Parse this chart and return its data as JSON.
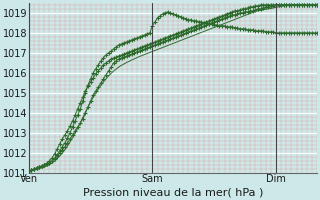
{
  "xlabel": "Pression niveau de la mer( hPa )",
  "background_color": "#cce8e8",
  "plot_bg_color": "#cce8e8",
  "line_color": "#2d6b2d",
  "ylim": [
    1011,
    1019.5
  ],
  "yticks": [
    1011,
    1012,
    1013,
    1014,
    1015,
    1016,
    1017,
    1018,
    1019
  ],
  "xtick_labels": [
    "Ven",
    "Sam",
    "Dim"
  ],
  "xtick_positions": [
    0,
    48,
    96
  ],
  "total_points": 113,
  "series": [
    {
      "has_markers": true,
      "data": [
        1011.1,
        1011.15,
        1011.2,
        1011.25,
        1011.3,
        1011.35,
        1011.4,
        1011.45,
        1011.5,
        1011.6,
        1011.7,
        1011.85,
        1012.0,
        1012.15,
        1012.3,
        1012.5,
        1012.7,
        1012.9,
        1013.1,
        1013.3,
        1013.5,
        1013.7,
        1014.0,
        1014.3,
        1014.6,
        1014.9,
        1015.1,
        1015.3,
        1015.5,
        1015.7,
        1015.9,
        1016.1,
        1016.3,
        1016.5,
        1016.6,
        1016.7,
        1016.75,
        1016.8,
        1016.85,
        1016.9,
        1016.95,
        1017.0,
        1017.05,
        1017.1,
        1017.15,
        1017.2,
        1017.25,
        1017.3,
        1017.35,
        1017.4,
        1017.45,
        1017.5,
        1017.55,
        1017.6,
        1017.65,
        1017.7,
        1017.75,
        1017.8,
        1017.85,
        1017.9,
        1017.95,
        1018.0,
        1018.05,
        1018.1,
        1018.15,
        1018.2,
        1018.25,
        1018.3,
        1018.35,
        1018.4,
        1018.45,
        1018.5,
        1018.55,
        1018.6,
        1018.65,
        1018.7,
        1018.75,
        1018.8,
        1018.85,
        1018.9,
        1018.9,
        1018.95,
        1019.0,
        1019.0,
        1019.05,
        1019.05,
        1019.1,
        1019.1,
        1019.15,
        1019.2,
        1019.2,
        1019.25,
        1019.3,
        1019.3,
        1019.35,
        1019.35,
        1019.4,
        1019.4,
        1019.4,
        1019.4,
        1019.4,
        1019.4,
        1019.4,
        1019.4,
        1019.4,
        1019.4,
        1019.4,
        1019.4,
        1019.4,
        1019.4,
        1019.4,
        1019.4,
        1019.4
      ]
    },
    {
      "has_markers": true,
      "data": [
        1011.1,
        1011.15,
        1011.2,
        1011.25,
        1011.3,
        1011.35,
        1011.4,
        1011.45,
        1011.5,
        1011.6,
        1011.75,
        1011.9,
        1012.1,
        1012.3,
        1012.5,
        1012.75,
        1013.0,
        1013.3,
        1013.6,
        1013.9,
        1014.2,
        1014.6,
        1015.0,
        1015.4,
        1015.7,
        1016.0,
        1016.2,
        1016.4,
        1016.6,
        1016.75,
        1016.9,
        1017.0,
        1017.1,
        1017.2,
        1017.3,
        1017.4,
        1017.45,
        1017.5,
        1017.55,
        1017.6,
        1017.65,
        1017.7,
        1017.75,
        1017.8,
        1017.85,
        1017.9,
        1017.95,
        1018.0,
        1018.35,
        1018.55,
        1018.75,
        1018.85,
        1018.95,
        1019.0,
        1019.05,
        1019.0,
        1018.95,
        1018.9,
        1018.85,
        1018.8,
        1018.75,
        1018.7,
        1018.65,
        1018.65,
        1018.6,
        1018.6,
        1018.55,
        1018.55,
        1018.5,
        1018.5,
        1018.45,
        1018.45,
        1018.4,
        1018.4,
        1018.35,
        1018.35,
        1018.35,
        1018.3,
        1018.3,
        1018.3,
        1018.25,
        1018.25,
        1018.2,
        1018.2,
        1018.2,
        1018.15,
        1018.15,
        1018.15,
        1018.1,
        1018.1,
        1018.1,
        1018.1,
        1018.05,
        1018.05,
        1018.05,
        1018.05,
        1018.0,
        1018.0,
        1018.0,
        1018.0,
        1018.0,
        1018.0,
        1018.0,
        1018.0,
        1018.0,
        1018.0,
        1018.0,
        1018.0,
        1018.0,
        1018.0,
        1018.0,
        1018.0,
        1018.0
      ]
    },
    {
      "has_markers": true,
      "data": [
        1011.1,
        1011.15,
        1011.2,
        1011.25,
        1011.3,
        1011.35,
        1011.4,
        1011.5,
        1011.6,
        1011.75,
        1011.95,
        1012.2,
        1012.45,
        1012.7,
        1012.9,
        1013.1,
        1013.35,
        1013.6,
        1013.9,
        1014.2,
        1014.5,
        1014.8,
        1015.1,
        1015.35,
        1015.55,
        1015.75,
        1015.95,
        1016.1,
        1016.25,
        1016.4,
        1016.5,
        1016.6,
        1016.7,
        1016.75,
        1016.8,
        1016.85,
        1016.9,
        1016.95,
        1017.0,
        1017.05,
        1017.1,
        1017.15,
        1017.2,
        1017.25,
        1017.3,
        1017.35,
        1017.4,
        1017.45,
        1017.5,
        1017.55,
        1017.6,
        1017.65,
        1017.7,
        1017.75,
        1017.8,
        1017.85,
        1017.9,
        1017.95,
        1018.0,
        1018.05,
        1018.1,
        1018.15,
        1018.2,
        1018.25,
        1018.3,
        1018.35,
        1018.4,
        1018.45,
        1018.5,
        1018.55,
        1018.6,
        1018.65,
        1018.7,
        1018.75,
        1018.8,
        1018.85,
        1018.9,
        1018.95,
        1019.0,
        1019.05,
        1019.1,
        1019.1,
        1019.15,
        1019.2,
        1019.2,
        1019.25,
        1019.3,
        1019.3,
        1019.35,
        1019.35,
        1019.4,
        1019.4,
        1019.4,
        1019.4,
        1019.4,
        1019.4,
        1019.4,
        1019.4,
        1019.4,
        1019.4,
        1019.4,
        1019.4,
        1019.4,
        1019.4,
        1019.4,
        1019.4,
        1019.4,
        1019.4,
        1019.4,
        1019.4,
        1019.4,
        1019.4,
        1019.4
      ]
    },
    {
      "has_markers": false,
      "data": [
        1011.1,
        1011.12,
        1011.15,
        1011.18,
        1011.22,
        1011.26,
        1011.3,
        1011.36,
        1011.42,
        1011.5,
        1011.6,
        1011.72,
        1011.85,
        1012.0,
        1012.16,
        1012.35,
        1012.55,
        1012.78,
        1013.0,
        1013.25,
        1013.5,
        1013.78,
        1014.05,
        1014.3,
        1014.55,
        1014.78,
        1015.0,
        1015.2,
        1015.38,
        1015.55,
        1015.7,
        1015.85,
        1015.98,
        1016.1,
        1016.2,
        1016.3,
        1016.38,
        1016.45,
        1016.52,
        1016.58,
        1016.65,
        1016.7,
        1016.76,
        1016.82,
        1016.87,
        1016.92,
        1016.97,
        1017.02,
        1017.07,
        1017.12,
        1017.17,
        1017.22,
        1017.27,
        1017.32,
        1017.37,
        1017.42,
        1017.47,
        1017.52,
        1017.57,
        1017.62,
        1017.67,
        1017.72,
        1017.77,
        1017.82,
        1017.87,
        1017.92,
        1017.97,
        1018.02,
        1018.07,
        1018.12,
        1018.17,
        1018.22,
        1018.27,
        1018.32,
        1018.37,
        1018.42,
        1018.47,
        1018.52,
        1018.57,
        1018.62,
        1018.67,
        1018.72,
        1018.77,
        1018.82,
        1018.87,
        1018.92,
        1018.97,
        1019.02,
        1019.07,
        1019.1,
        1019.12,
        1019.15,
        1019.18,
        1019.2,
        1019.22,
        1019.25,
        1019.27,
        1019.3,
        1019.32,
        1019.35,
        1019.37,
        1019.4,
        1019.4,
        1019.4,
        1019.4,
        1019.4,
        1019.4,
        1019.4,
        1019.4,
        1019.4,
        1019.4,
        1019.4,
        1019.4
      ]
    }
  ]
}
